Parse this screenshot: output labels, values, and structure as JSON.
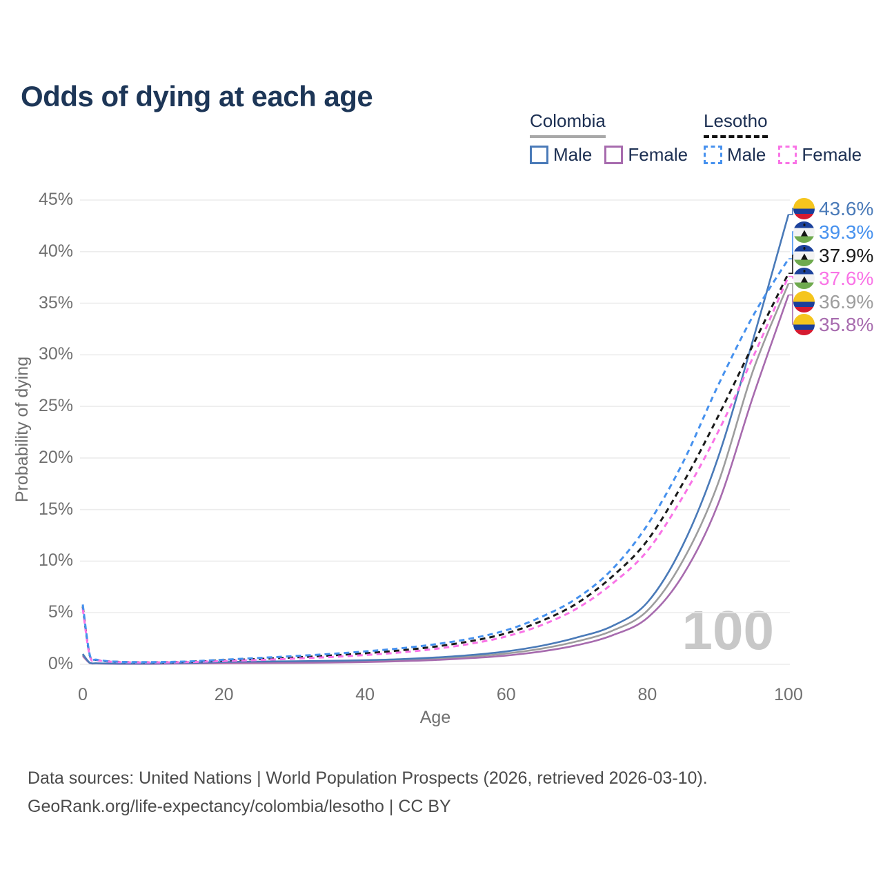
{
  "title": "Odds of dying at each age",
  "legend": {
    "groups": [
      {
        "id": "colombia",
        "label": "Colombia",
        "underline_style": "solid",
        "underline_color": "#a8a8a8",
        "items": [
          {
            "series": "colombia_male",
            "label": "Male"
          },
          {
            "series": "colombia_female",
            "label": "Female"
          }
        ]
      },
      {
        "id": "lesotho",
        "label": "Lesotho",
        "underline_style": "dashed",
        "underline_color": "#111111",
        "items": [
          {
            "series": "lesotho_male",
            "label": "Male"
          },
          {
            "series": "lesotho_female",
            "label": "Female"
          }
        ]
      }
    ]
  },
  "chart_data": {
    "type": "line",
    "title": "Odds of dying at each age",
    "xlabel": "Age",
    "ylabel": "Probability of dying",
    "xlim": [
      0,
      100
    ],
    "ylim": [
      0,
      45
    ],
    "grid": true,
    "legend_position": "top-right",
    "watermark": "100",
    "x_ticks": [
      "0",
      "20",
      "40",
      "60",
      "80",
      "100"
    ],
    "y_ticks": [
      "0%",
      "5%",
      "10%",
      "15%",
      "20%",
      "25%",
      "30%",
      "35%",
      "40%",
      "45%"
    ],
    "x": [
      0,
      1,
      2,
      5,
      10,
      15,
      20,
      25,
      30,
      35,
      40,
      45,
      50,
      55,
      60,
      65,
      70,
      75,
      80,
      85,
      90,
      95,
      100
    ],
    "series": [
      {
        "id": "colombia_both",
        "name": "Colombia Both sexes",
        "color": "#9d9d9d",
        "dashed": false,
        "values": [
          0.9,
          0.14,
          0.09,
          0.06,
          0.07,
          0.11,
          0.17,
          0.2,
          0.22,
          0.26,
          0.31,
          0.4,
          0.54,
          0.75,
          1.05,
          1.52,
          2.22,
          3.25,
          5.2,
          10.0,
          17.5,
          28.5,
          36.9
        ]
      },
      {
        "id": "colombia_female",
        "name": "Colombia Female",
        "color": "#a76bae",
        "dashed": false,
        "values": [
          0.8,
          0.12,
          0.08,
          0.05,
          0.05,
          0.08,
          0.1,
          0.12,
          0.14,
          0.17,
          0.22,
          0.3,
          0.42,
          0.6,
          0.85,
          1.25,
          1.85,
          2.8,
          4.5,
          8.6,
          15.5,
          26.0,
          35.8
        ]
      },
      {
        "id": "colombia_male",
        "name": "Colombia Male",
        "color": "#4a7ab8",
        "dashed": false,
        "values": [
          1.0,
          0.15,
          0.1,
          0.07,
          0.08,
          0.14,
          0.23,
          0.27,
          0.3,
          0.34,
          0.4,
          0.5,
          0.66,
          0.9,
          1.25,
          1.8,
          2.6,
          3.7,
          6.0,
          11.5,
          20.0,
          31.5,
          43.6
        ]
      },
      {
        "id": "lesotho_both",
        "name": "Lesotho Both sexes",
        "color": "#1a1a1a",
        "dashed": true,
        "values": [
          5.6,
          0.85,
          0.42,
          0.24,
          0.2,
          0.25,
          0.38,
          0.52,
          0.67,
          0.85,
          1.07,
          1.35,
          1.72,
          2.25,
          3.0,
          4.2,
          5.9,
          8.5,
          12.0,
          17.5,
          24.0,
          31.0,
          37.9
        ]
      },
      {
        "id": "lesotho_female",
        "name": "Lesotho Female",
        "color": "#f973e6",
        "dashed": true,
        "values": [
          5.4,
          0.8,
          0.4,
          0.22,
          0.18,
          0.22,
          0.32,
          0.42,
          0.55,
          0.7,
          0.9,
          1.15,
          1.5,
          2.0,
          2.7,
          3.8,
          5.4,
          7.8,
          11.0,
          16.2,
          22.5,
          29.8,
          37.6
        ]
      },
      {
        "id": "lesotho_male",
        "name": "Lesotho Male",
        "color": "#4691ee",
        "dashed": true,
        "values": [
          5.8,
          0.9,
          0.45,
          0.25,
          0.22,
          0.28,
          0.45,
          0.62,
          0.8,
          1.0,
          1.25,
          1.55,
          1.95,
          2.5,
          3.3,
          4.6,
          6.4,
          9.2,
          13.5,
          19.5,
          27.0,
          33.8,
          39.3
        ]
      }
    ]
  },
  "end_labels": [
    {
      "series": "colombia_male",
      "flag": "colombia",
      "value": "43.6%"
    },
    {
      "series": "lesotho_male",
      "flag": "lesotho",
      "value": "39.3%"
    },
    {
      "series": "lesotho_both",
      "flag": "lesotho",
      "value": "37.9%"
    },
    {
      "series": "lesotho_female",
      "flag": "lesotho",
      "value": "37.6%"
    },
    {
      "series": "colombia_both",
      "flag": "colombia",
      "value": "36.9%"
    },
    {
      "series": "colombia_female",
      "flag": "colombia",
      "value": "35.8%"
    }
  ],
  "footer": {
    "line1": "Data sources: United Nations | World Population Prospects (2026, retrieved 2026-03-10).",
    "line2": "GeoRank.org/life-expectancy/colombia/lesotho | CC BY"
  }
}
